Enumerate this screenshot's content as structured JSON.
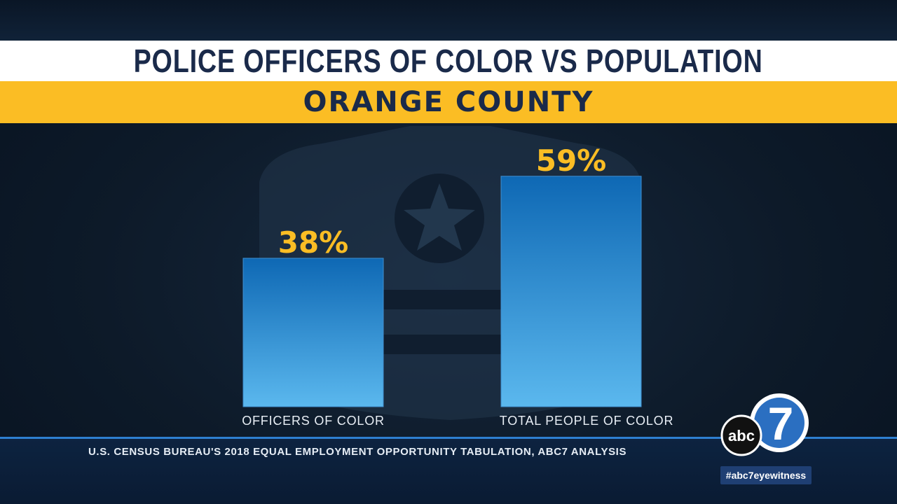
{
  "title": "POLICE OFFICERS OF COLOR VS POPULATION",
  "subtitle": "ORANGE COUNTY",
  "source": "U.S. CENSUS BUREAU'S 2018 EQUAL EMPLOYMENT OPPORTUNITY TABULATION, ABC7 ANALYSIS",
  "logo": {
    "brand": "abc",
    "number": "7",
    "icon": "abc7-logo-icon"
  },
  "hashtag": "#abc7eyewitness",
  "colors": {
    "title_bg": "#ffffff",
    "subtitle_bg": "#fbbd24",
    "title_text": "#1a2a4a",
    "bar_top": "#0e68b4",
    "bar_bottom": "#5bb8ee",
    "value_label": "#fbbd24",
    "accent_line": "#2e7fd0"
  },
  "chart_data": {
    "type": "bar",
    "categories": [
      "OFFICERS OF COLOR",
      "TOTAL PEOPLE OF COLOR"
    ],
    "values": [
      38,
      59
    ],
    "data_labels": [
      "38%",
      "59%"
    ],
    "title": "POLICE OFFICERS OF COLOR VS POPULATION",
    "subtitle": "ORANGE COUNTY",
    "ylim": [
      0,
      100
    ],
    "grid": false,
    "legend": "none"
  }
}
